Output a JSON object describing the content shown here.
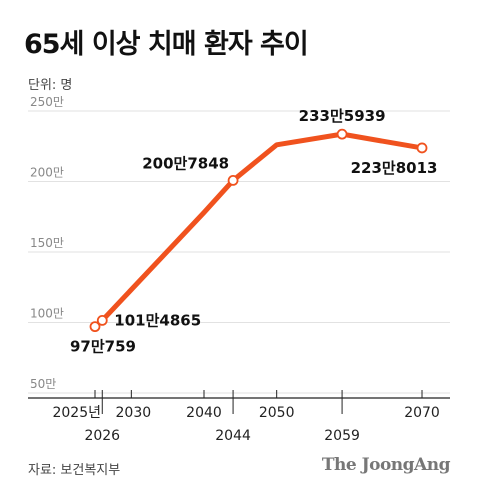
{
  "title": "65세 이상 치매 환자 추이",
  "unit_label": "단위: 명",
  "source": "자료: 보건복지부",
  "brand": "The JoongAng",
  "colors": {
    "line": "#f0521e",
    "grid": "#e2e2e2",
    "axis": "#222222",
    "marker_fill": "#ffffff"
  },
  "chart_data": {
    "type": "line",
    "title": "65세 이상 치매 환자 추이",
    "ylabel": "단위: 명",
    "xlabel": "",
    "ylim": [
      50,
      250
    ],
    "xlim": [
      2025,
      2070
    ],
    "y_ticks": [
      {
        "value": 250,
        "label": "250만"
      },
      {
        "value": 200,
        "label": "200만"
      },
      {
        "value": 150,
        "label": "150만"
      },
      {
        "value": 100,
        "label": "100만"
      },
      {
        "value": 50,
        "label": "50만"
      }
    ],
    "x_ticks": [
      {
        "value": 2025,
        "label": "2025년",
        "row": "top"
      },
      {
        "value": 2026,
        "label": "2026",
        "row": "bottom"
      },
      {
        "value": 2030,
        "label": "2030",
        "row": "top"
      },
      {
        "value": 2040,
        "label": "2040",
        "row": "top"
      },
      {
        "value": 2044,
        "label": "2044",
        "row": "bottom"
      },
      {
        "value": 2050,
        "label": "2050",
        "row": "top"
      },
      {
        "value": 2059,
        "label": "2059",
        "row": "bottom"
      },
      {
        "value": 2070,
        "label": "2070",
        "row": "top"
      }
    ],
    "grid": true,
    "series": [
      {
        "points": [
          {
            "x": 2025,
            "y": 97.0759
          },
          {
            "x": 2026,
            "y": 101.4865
          },
          {
            "x": 2040,
            "y": 178
          },
          {
            "x": 2044,
            "y": 200.7848
          },
          {
            "x": 2050,
            "y": 226
          },
          {
            "x": 2059,
            "y": 233.5939
          },
          {
            "x": 2070,
            "y": 223.8013
          }
        ]
      }
    ],
    "labeled_points": [
      {
        "x": 2025,
        "y": 97.0759,
        "label": "97만759",
        "pos": "below"
      },
      {
        "x": 2026,
        "y": 101.4865,
        "label": "101만4865",
        "pos": "right"
      },
      {
        "x": 2044,
        "y": 200.7848,
        "label": "200만7848",
        "pos": "above-left"
      },
      {
        "x": 2059,
        "y": 233.5939,
        "label": "233만5939",
        "pos": "above"
      },
      {
        "x": 2070,
        "y": 223.8013,
        "label": "223만8013",
        "pos": "below"
      }
    ]
  }
}
